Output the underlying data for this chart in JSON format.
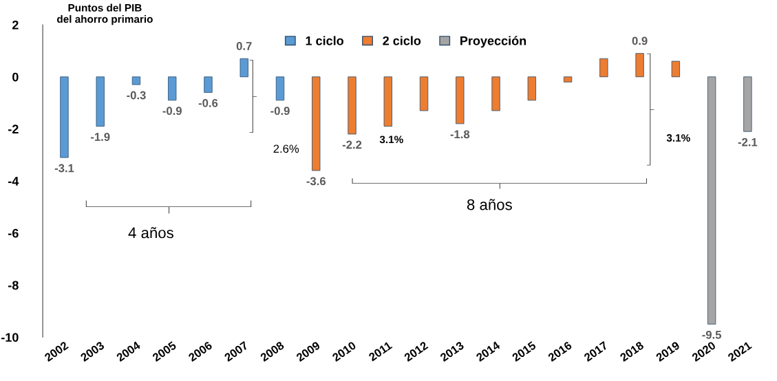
{
  "chart_data": {
    "type": "bar",
    "title": "Puntos del PIB\ndel ahorro primario",
    "categories": [
      "2002",
      "2003",
      "2004",
      "2005",
      "2006",
      "2007",
      "2008",
      "2009",
      "2010",
      "2011",
      "2012",
      "2013",
      "2014",
      "2015",
      "2016",
      "2017",
      "2018",
      "2019",
      "2020",
      "2021"
    ],
    "series": [
      {
        "name": "1 ciclo",
        "color": "#5b9bd5",
        "values": [
          -3.1,
          -1.9,
          -0.3,
          -0.9,
          -0.6,
          0.7,
          -0.9,
          null,
          null,
          null,
          null,
          null,
          null,
          null,
          null,
          null,
          null,
          null,
          null,
          null
        ],
        "value_labels": [
          "-3.1",
          "-1.9",
          "-0.3",
          "-0.9",
          "-0.6",
          "0.7",
          "-0.9",
          null,
          null,
          null,
          null,
          null,
          null,
          null,
          null,
          null,
          null,
          null,
          null,
          null
        ]
      },
      {
        "name": "2 ciclo",
        "color": "#ed7d31",
        "values": [
          null,
          null,
          null,
          null,
          null,
          null,
          null,
          -3.6,
          -2.2,
          -1.9,
          -1.3,
          -1.8,
          -1.3,
          -0.9,
          -0.2,
          0.7,
          0.9,
          0.6,
          null,
          null
        ],
        "value_labels": [
          null,
          null,
          null,
          null,
          null,
          null,
          null,
          "-3.6",
          "-2.2",
          null,
          null,
          "-1.8",
          null,
          null,
          null,
          null,
          "0.9",
          null,
          null,
          null
        ]
      },
      {
        "name": "Proyección",
        "color": "#a5a5a5",
        "values": [
          null,
          null,
          null,
          null,
          null,
          null,
          null,
          null,
          null,
          null,
          null,
          null,
          null,
          null,
          null,
          null,
          null,
          null,
          -9.5,
          -2.1
        ],
        "value_labels": [
          null,
          null,
          null,
          null,
          null,
          null,
          null,
          null,
          null,
          null,
          null,
          null,
          null,
          null,
          null,
          null,
          null,
          null,
          "-9.5",
          "-2.1"
        ]
      }
    ],
    "ylim": [
      -10,
      2
    ],
    "yticks": [
      -10,
      -8,
      -6,
      -4,
      -2,
      0,
      2
    ],
    "grid": false,
    "legend": "top",
    "annotations": [
      "4 años",
      "8 años",
      "2.6%",
      "3.1%",
      "3.1%"
    ]
  }
}
